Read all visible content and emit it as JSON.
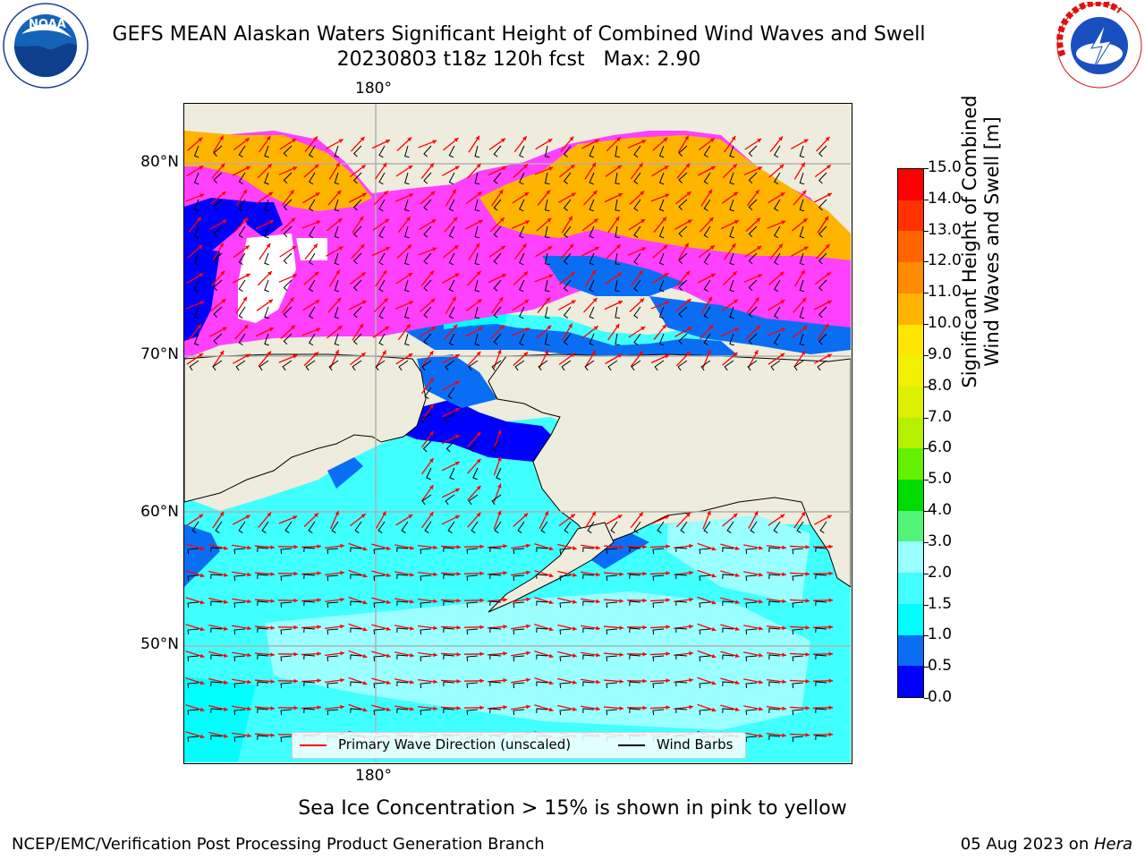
{
  "title": {
    "line1": "GEFS MEAN Alaskan Waters Significant Height of Combined Wind Waves and Swell",
    "line2": "20230803 t18z 120h fcst   Max: 2.90"
  },
  "logos": {
    "left": {
      "text": "NOAA",
      "ring_text": "NATIONAL OCEANIC AND ATMOSPHERIC ADMINISTRATION · U.S. DEPARTMENT OF COMMERCE"
    },
    "right": {
      "ring_text": "NATIONAL WEATHER SERVICE"
    }
  },
  "map": {
    "lon_label_top": "180°",
    "lon_label_bottom": "180°",
    "lat_labels": [
      "80°N",
      "70°N",
      "60°N",
      "50°N"
    ],
    "colors": {
      "land": "#eeecdc",
      "grid": "#b0b0b0",
      "wave_arrow": "#ff0000",
      "wind_barb": "#000000"
    }
  },
  "legend": {
    "wave_label": "Primary Wave Direction (unscaled)",
    "wind_label": "Wind Barbs"
  },
  "colorbar": {
    "label_line1": "Significant Height of Combined",
    "label_line2": "Wind Waves and Swell [m]",
    "ticks": [
      "0.0",
      "0.5",
      "1.0",
      "1.5",
      "2.0",
      "3.0",
      "4.0",
      "5.0",
      "6.0",
      "7.0",
      "8.0",
      "9.0",
      "10.0",
      "11.0",
      "12.0",
      "13.0",
      "14.0",
      "15.0"
    ],
    "segment_colors": [
      "#0000ff",
      "#0a6ef5",
      "#00ffff",
      "#40ffff",
      "#99ffff",
      "#50f57a",
      "#00dc00",
      "#64f000",
      "#b4f000",
      "#dcf000",
      "#f0f000",
      "#ffe600",
      "#ffb400",
      "#ff8c00",
      "#ff6400",
      "#ff3200",
      "#ff0000"
    ]
  },
  "footer": {
    "note": "Sea Ice Concentration > 15% is shown in pink to yellow",
    "left": "NCEP/EMC/Verification Post Processing Product Generation Branch",
    "right_prefix": "05 Aug 2023 on ",
    "right_host": "Hera"
  }
}
